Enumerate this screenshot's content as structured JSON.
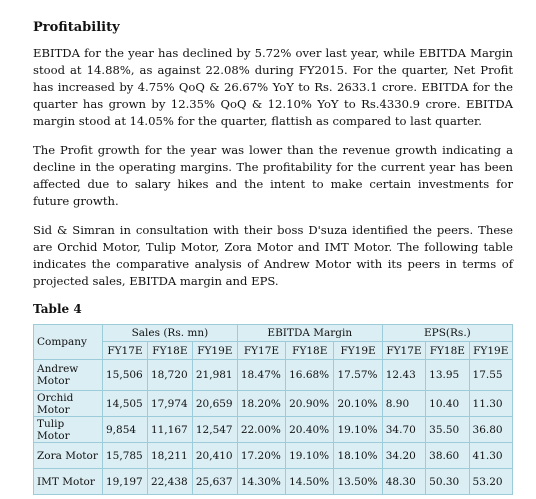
{
  "heading": "Profitability",
  "paragraphs": [
    "EBITDA for the year has declined by 5.72% over last year, while EBITDA Margin stood at 14.88%, as against 22.08% during FY2015. For the quarter, Net Profit has increased by 4.75% QoQ & 26.67% YoY to Rs. 2633.1 crore. EBITDA for the quarter has grown by 12.35% QoQ & 12.10% YoY to Rs.4330.9 crore. EBITDA margin stood at 14.05% for the quarter, flattish as compared to last quarter.",
    "The Profit growth for the year was lower than the revenue growth indicating a decline in the operating margins. The profitability for the current year has been affected due to salary hikes and the intent to make certain investments for future growth.",
    "Sid & Simran in consultation with their boss D'suza identified the peers. These are Orchid Motor, Tulip Motor, Zora Motor and IMT Motor. The following table indicates the comparative analysis of Andrew Motor with its peers in terms of projected sales, EBITDA margin and EPS."
  ],
  "table_caption": "Table 4",
  "table": {
    "company_header": "Company",
    "groups": [
      "Sales (Rs. mn)",
      "EBITDA Margin",
      "EPS(Rs.)"
    ],
    "years": [
      "FY17E",
      "FY18E",
      "FY19E",
      "FY17E",
      "FY18E",
      "FY19E",
      "FY17E",
      "FY18E",
      "FY19E"
    ],
    "rows": [
      [
        "Andrew Motor",
        "15,506",
        "18,720",
        "21,981",
        "18.47%",
        "16.68%",
        "17.57%",
        "12.43",
        "13.95",
        "17.55"
      ],
      [
        "Orchid Motor",
        "14,505",
        "17,974",
        "20,659",
        "18.20%",
        "20.90%",
        "20.10%",
        "8.90",
        "10.40",
        "11.30"
      ],
      [
        "Tulip Motor",
        "9,854",
        "11,167",
        "12,547",
        "22.00%",
        "20.40%",
        "19.10%",
        "34.70",
        "35.50",
        "36.80"
      ],
      [
        "Zora Motor",
        "15,785",
        "18,211",
        "20,410",
        "17.20%",
        "19.10%",
        "18.10%",
        "34.20",
        "38.60",
        "41.30"
      ],
      [
        "IMT Motor",
        "19,197",
        "22,438",
        "25,637",
        "14.30%",
        "14.50%",
        "13.50%",
        "48.30",
        "50.30",
        "53.20"
      ]
    ]
  }
}
